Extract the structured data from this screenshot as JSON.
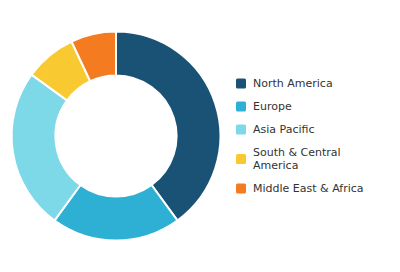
{
  "chart_data": {
    "type": "donut",
    "categories": [
      "North America",
      "Europe",
      "Asia Pacific",
      "South & Central\nAmerica",
      "Middle East & Africa"
    ],
    "values": [
      40,
      20,
      25,
      8,
      7
    ],
    "colors": [
      "#1a5276",
      "#2eafd4",
      "#7dd8e8",
      "#f9c931",
      "#f47b20"
    ],
    "legend": "right"
  }
}
